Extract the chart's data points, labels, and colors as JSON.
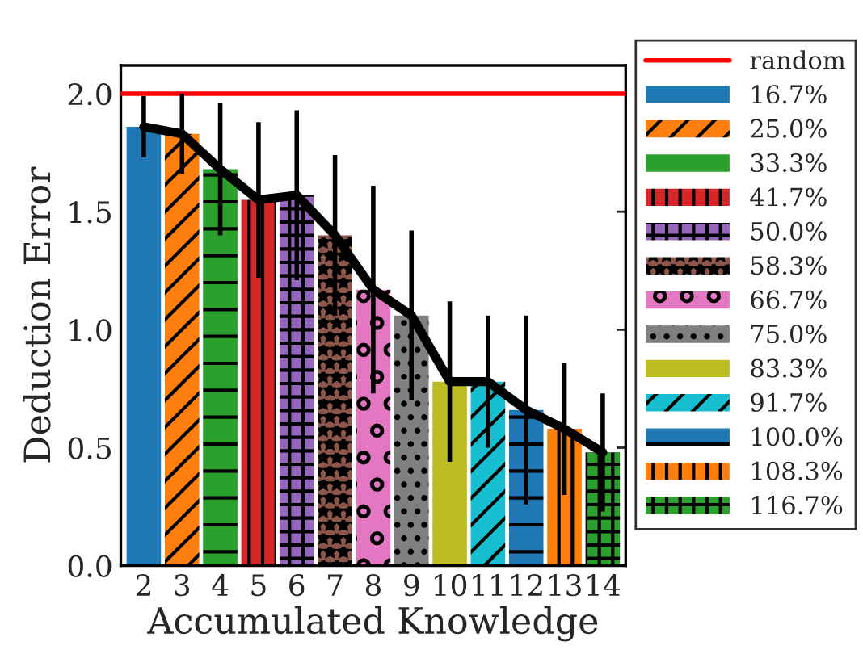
{
  "chart_data": {
    "type": "bar",
    "xlabel": "Accumulated Knowledge",
    "ylabel": "Deduction Error",
    "categories": [
      "2",
      "3",
      "4",
      "5",
      "6",
      "7",
      "8",
      "9",
      "10",
      "11",
      "12",
      "13",
      "14"
    ],
    "series": [
      {
        "name": "16.7%",
        "color": "#1f77b4",
        "values": [
          1.86,
          null,
          null,
          null,
          null,
          null,
          null,
          null,
          null,
          null,
          null,
          null,
          null
        ],
        "errors": [
          0.13,
          null,
          null,
          null,
          null,
          null,
          null,
          null,
          null,
          null,
          null,
          null,
          null
        ]
      },
      {
        "name": "25.0%",
        "color": "#ff7f0e",
        "values": [
          null,
          1.83,
          null,
          null,
          null,
          null,
          null,
          null,
          null,
          null,
          null,
          null,
          null
        ],
        "errors": [
          null,
          0.17,
          null,
          null,
          null,
          null,
          null,
          null,
          null,
          null,
          null,
          null,
          null
        ]
      },
      {
        "name": "33.3%",
        "color": "#2ca02c",
        "values": [
          null,
          null,
          1.68,
          null,
          null,
          null,
          null,
          null,
          null,
          null,
          null,
          null,
          null
        ],
        "errors": [
          null,
          null,
          0.28,
          null,
          null,
          null,
          null,
          null,
          null,
          null,
          null,
          null,
          null
        ]
      },
      {
        "name": "41.7%",
        "color": "#d62728",
        "values": [
          null,
          null,
          null,
          1.55,
          null,
          null,
          null,
          null,
          null,
          null,
          null,
          null,
          null
        ],
        "errors": [
          null,
          null,
          null,
          0.33,
          null,
          null,
          null,
          null,
          null,
          null,
          null,
          null,
          null
        ]
      },
      {
        "name": "50.0%",
        "color": "#9467bd",
        "values": [
          null,
          null,
          null,
          null,
          1.57,
          null,
          null,
          null,
          null,
          null,
          null,
          null,
          null
        ],
        "errors": [
          null,
          null,
          null,
          null,
          0.36,
          null,
          null,
          null,
          null,
          null,
          null,
          null,
          null
        ]
      },
      {
        "name": "58.3%",
        "color": "#8c564b",
        "values": [
          null,
          null,
          null,
          null,
          null,
          1.4,
          null,
          null,
          null,
          null,
          null,
          null,
          null
        ],
        "errors": [
          null,
          null,
          null,
          null,
          null,
          0.34,
          null,
          null,
          null,
          null,
          null,
          null,
          null
        ]
      },
      {
        "name": "66.7%",
        "color": "#e377c2",
        "values": [
          null,
          null,
          null,
          null,
          null,
          null,
          1.17,
          null,
          null,
          null,
          null,
          null,
          null
        ],
        "errors": [
          null,
          null,
          null,
          null,
          null,
          null,
          0.44,
          null,
          null,
          null,
          null,
          null,
          null
        ]
      },
      {
        "name": "75.0%",
        "color": "#7f7f7f",
        "values": [
          null,
          null,
          null,
          null,
          null,
          null,
          null,
          1.06,
          null,
          null,
          null,
          null,
          null
        ],
        "errors": [
          null,
          null,
          null,
          null,
          null,
          null,
          null,
          0.36,
          null,
          null,
          null,
          null,
          null
        ]
      },
      {
        "name": "83.3%",
        "color": "#bcbd22",
        "values": [
          null,
          null,
          null,
          null,
          null,
          null,
          null,
          null,
          0.78,
          null,
          null,
          null,
          null
        ],
        "errors": [
          null,
          null,
          null,
          null,
          null,
          null,
          null,
          null,
          0.34,
          null,
          null,
          null,
          null
        ]
      },
      {
        "name": "91.7%",
        "color": "#17becf",
        "values": [
          null,
          null,
          null,
          null,
          null,
          null,
          null,
          null,
          null,
          0.78,
          null,
          null,
          null
        ],
        "errors": [
          null,
          null,
          null,
          null,
          null,
          null,
          null,
          null,
          null,
          0.28,
          null,
          null,
          null
        ]
      },
      {
        "name": "100.0%",
        "color": "#1f77b4",
        "values": [
          null,
          null,
          null,
          null,
          null,
          null,
          null,
          null,
          null,
          null,
          0.66,
          null,
          null
        ],
        "errors": [
          null,
          null,
          null,
          null,
          null,
          null,
          null,
          null,
          null,
          null,
          0.4,
          null,
          null
        ]
      },
      {
        "name": "108.3%",
        "color": "#ff7f0e",
        "values": [
          null,
          null,
          null,
          null,
          null,
          null,
          null,
          null,
          null,
          null,
          null,
          0.58,
          null
        ],
        "errors": [
          null,
          null,
          null,
          null,
          null,
          null,
          null,
          null,
          null,
          null,
          null,
          0.28,
          null
        ]
      },
      {
        "name": "116.7%",
        "color": "#2ca02c",
        "values": [
          null,
          null,
          null,
          null,
          null,
          null,
          null,
          null,
          null,
          null,
          null,
          null,
          0.48
        ],
        "errors": [
          null,
          null,
          null,
          null,
          null,
          null,
          null,
          null,
          null,
          null,
          null,
          null,
          0.25
        ]
      },
      {
        "type": "line",
        "color": "#000000",
        "values": [
          1.86,
          1.83,
          1.68,
          1.55,
          1.57,
          1.4,
          1.17,
          1.06,
          0.78,
          0.78,
          0.66,
          0.58,
          0.48
        ]
      }
    ],
    "ref_lines": [
      {
        "axis": "y",
        "value": 2.0,
        "label": "random",
        "color": "#ff0000"
      }
    ],
    "ylim": [
      0,
      2.12
    ],
    "yticks": [
      {
        "value": 0,
        "label": "0.0"
      },
      {
        "value": 0.5,
        "label": "0.5"
      },
      {
        "value": 1,
        "label": "1.0"
      },
      {
        "value": 1.5,
        "label": "1.5"
      },
      {
        "value": 2,
        "label": "2.0"
      }
    ],
    "legend": "right",
    "grid": false
  }
}
